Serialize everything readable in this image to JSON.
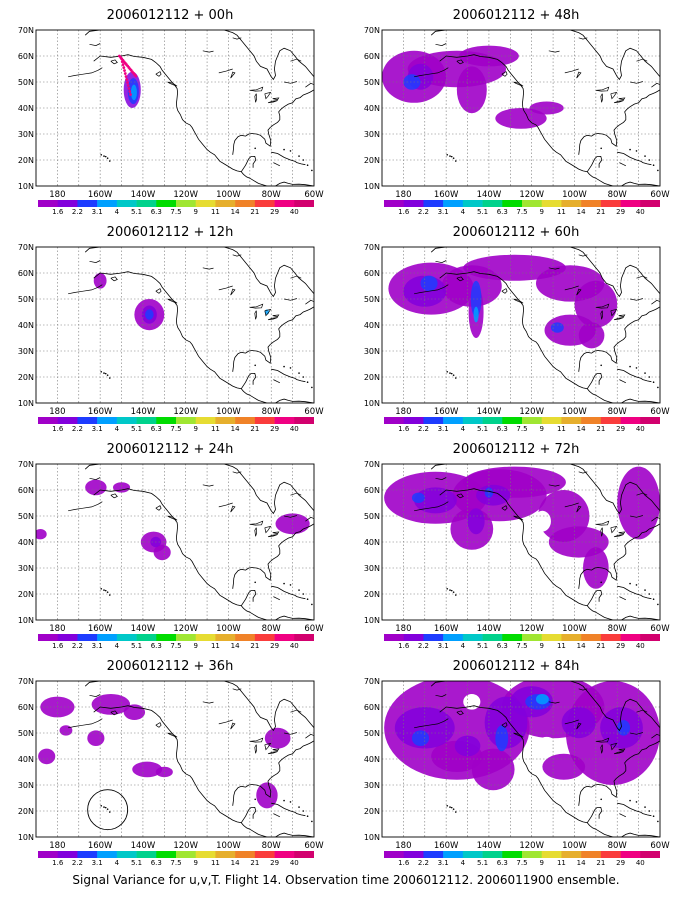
{
  "panels": [
    {
      "title": "2006012112 + 00h"
    },
    {
      "title": "2006012112 + 48h"
    },
    {
      "title": "2006012112 + 12h"
    },
    {
      "title": "2006012112 + 60h"
    },
    {
      "title": "2006012112 + 24h"
    },
    {
      "title": "2006012112 + 72h"
    },
    {
      "title": "2006012112 + 36h"
    },
    {
      "title": "2006012112 + 84h"
    }
  ],
  "map": {
    "lat_labels": [
      "70N",
      "60N",
      "50N",
      "40N",
      "30N",
      "20N",
      "10N"
    ],
    "lon_labels": [
      "180",
      "160W",
      "140W",
      "120W",
      "100W",
      "80W",
      "60W"
    ]
  },
  "colorbar": {
    "labels": [
      "1.6",
      "2.2",
      "3.1",
      "4",
      "5.1",
      "6.3",
      "7.5",
      "9",
      "11",
      "14",
      "21",
      "29",
      "40"
    ],
    "colors": [
      "#a000c8",
      "#8200dc",
      "#1e3cff",
      "#00a0ff",
      "#00c8c8",
      "#00d28c",
      "#00dc00",
      "#a0e632",
      "#e6dc32",
      "#e6af2d",
      "#f08228",
      "#fa3c3c",
      "#f00082"
    ]
  },
  "caption": "Signal Variance for u,v,T. Flight 14. Observation time 2006012112. 2006011900 ensemble."
}
